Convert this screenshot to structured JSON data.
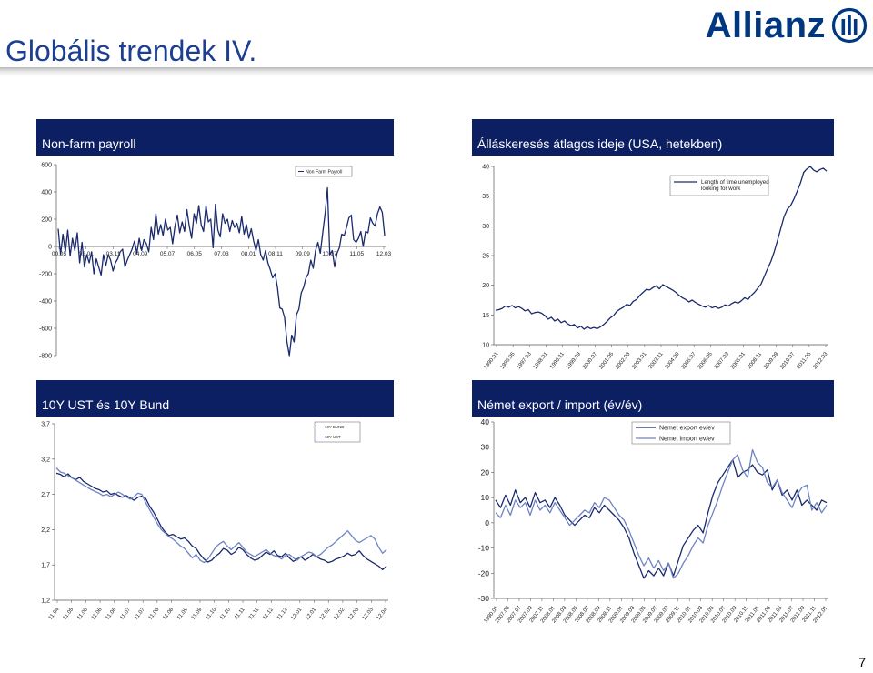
{
  "page": {
    "title": "Globális trendek IV.",
    "brand": "Allianz",
    "page_number": "7"
  },
  "colors": {
    "header_bg": "#0d1f63",
    "title": "#1b3f91",
    "brand": "#003781",
    "line_dark": "#1a2a6c",
    "line_light": "#6e83c4"
  },
  "panels": {
    "nfp": {
      "header": "Non-farm payroll"
    },
    "unemp": {
      "header": "Álláskeresés átlagos ideje (USA, hetekben)"
    },
    "bonds": {
      "header": "10Y UST és 10Y Bund"
    },
    "trade": {
      "header": "Német export / import (év/év)"
    }
  },
  "chart_data": [
    {
      "id": "nfp",
      "type": "line",
      "ylim": [
        -800,
        600
      ],
      "yticks": [
        "600",
        "400",
        "200",
        "0",
        "-200",
        "-400",
        "-600",
        "-800"
      ],
      "xticks": [
        "00.05",
        "02.01",
        "03.11",
        "04.09",
        "05.07",
        "06.05",
        "07.03",
        "08.01",
        "08.11",
        "09.09",
        "10.07",
        "11.05",
        "12.03"
      ],
      "series": [
        {
          "name": "Non Farm Payroll",
          "color": "#1a2a6c",
          "values": [
            130,
            -60,
            90,
            -40,
            120,
            -70,
            60,
            -30,
            100,
            -120,
            30,
            -150,
            -60,
            -120,
            -40,
            -200,
            -90,
            -150,
            -210,
            -60,
            -140,
            -60,
            -100,
            -180,
            -120,
            -90,
            -40,
            -20,
            -150,
            -100,
            -60,
            -20,
            40,
            -50,
            60,
            -30,
            50,
            20,
            -40,
            140,
            50,
            240,
            90,
            160,
            80,
            200,
            120,
            140,
            20,
            150,
            230,
            100,
            180,
            110,
            270,
            150,
            60,
            240,
            170,
            300,
            160,
            110,
            300,
            180,
            200,
            -10,
            310,
            120,
            70,
            240,
            170,
            200,
            110,
            190,
            140,
            170,
            100,
            220,
            90,
            160,
            60,
            130,
            40,
            -30,
            50,
            -60,
            -100,
            -30,
            -120,
            -170,
            -230,
            -200,
            -300,
            -450,
            -460,
            -520,
            -700,
            -800,
            -650,
            -700,
            -500,
            -460,
            -340,
            -300,
            -230,
            -200,
            -100,
            -160,
            -30,
            30,
            -50,
            100,
            240,
            430,
            -60,
            -30,
            -150,
            -50,
            -10,
            90,
            80,
            140,
            210,
            230,
            50,
            30,
            60,
            110,
            0,
            110,
            100,
            210,
            170,
            150,
            240,
            290,
            250,
            80
          ]
        }
      ]
    },
    {
      "id": "unemp",
      "type": "line",
      "ylim": [
        10,
        40
      ],
      "yticks": [
        "40",
        "35",
        "30",
        "25",
        "20",
        "15",
        "10"
      ],
      "xticks": [
        "1990.01",
        "1996.05",
        "1997.03",
        "1998.01",
        "1998.11",
        "1999.09",
        "2000.07",
        "2001.05",
        "2002.03",
        "2003.01",
        "2003.11",
        "2004.09",
        "2005.07",
        "2006.05",
        "2007.03",
        "2008.01",
        "2008.11",
        "2009.09",
        "2010.07",
        "2011.05",
        "2012.03"
      ],
      "series": [
        {
          "name": "Length of time unemployed looking for work",
          "color": "#1a2a6c",
          "values": [
            15.8,
            15.9,
            16.1,
            16.5,
            16.3,
            16.6,
            16.2,
            16.4,
            16.1,
            15.7,
            15.9,
            15.2,
            15.4,
            15.5,
            15.3,
            14.9,
            14.3,
            14.6,
            14.0,
            14.3,
            13.7,
            14.0,
            13.5,
            13.2,
            13.4,
            12.8,
            13.1,
            12.6,
            13.0,
            12.7,
            12.9,
            12.7,
            13.0,
            13.4,
            13.9,
            14.5,
            14.9,
            15.6,
            16.0,
            16.3,
            16.8,
            16.6,
            17.3,
            17.6,
            18.3,
            18.8,
            19.3,
            19.2,
            19.6,
            19.9,
            19.4,
            20.1,
            19.8,
            19.5,
            19.2,
            18.8,
            18.3,
            17.9,
            17.6,
            17.2,
            17.5,
            17.1,
            16.8,
            16.5,
            16.3,
            16.6,
            16.2,
            16.4,
            16.1,
            16.3,
            16.7,
            16.5,
            16.9,
            17.2,
            17.0,
            17.4,
            17.9,
            17.6,
            18.3,
            18.8,
            19.5,
            20.2,
            21.5,
            22.8,
            24.0,
            25.6,
            27.5,
            29.5,
            31.5,
            32.8,
            33.4,
            34.5,
            35.8,
            37.2,
            39.0,
            39.6,
            40.0,
            39.4,
            39.1,
            39.5,
            39.7,
            39.2
          ]
        }
      ]
    },
    {
      "id": "bonds",
      "type": "line",
      "ylim": [
        1.2,
        4.2
      ],
      "yticks": [
        "3,7",
        "3,2",
        "2,7",
        "2,2",
        "1,7",
        "1,2"
      ],
      "xticks": [
        "11.04",
        "11.05",
        "11.05",
        "11.06",
        "11.06",
        "11.07",
        "11.07",
        "11.08",
        "11.08",
        "11.09",
        "11.09",
        "11.10",
        "11.10",
        "11.11",
        "11.11",
        "11.12",
        "11.12",
        "12.01",
        "12.01",
        "12.02",
        "12.02",
        "12.03",
        "12.03",
        "12.04"
      ],
      "series": [
        {
          "name": "10Y BUND",
          "color": "#1a2a6c",
          "values": [
            3.36,
            3.34,
            3.3,
            3.35,
            3.28,
            3.25,
            3.29,
            3.22,
            3.18,
            3.14,
            3.1,
            3.08,
            3.04,
            3.06,
            3.0,
            3.02,
            2.98,
            2.95,
            2.98,
            2.94,
            2.9,
            2.95,
            2.97,
            2.93,
            2.8,
            2.7,
            2.58,
            2.45,
            2.36,
            2.3,
            2.32,
            2.28,
            2.24,
            2.26,
            2.2,
            2.12,
            2.08,
            1.98,
            1.9,
            1.85,
            1.88,
            1.95,
            2.0,
            2.08,
            2.05,
            1.98,
            2.02,
            2.1,
            2.06,
            1.98,
            1.92,
            1.88,
            1.9,
            1.96,
            2.02,
            1.98,
            2.04,
            1.96,
            1.94,
            2.0,
            1.92,
            1.86,
            1.9,
            1.94,
            1.88,
            1.92,
            1.98,
            1.94,
            1.9,
            1.88,
            1.84,
            1.86,
            1.9,
            1.92,
            1.95,
            2.0,
            1.96,
            1.98,
            2.04,
            1.96,
            1.9,
            1.86,
            1.82,
            1.78,
            1.72,
            1.78
          ]
        },
        {
          "name": "10Y UST",
          "color": "#6e83c4",
          "values": [
            3.45,
            3.38,
            3.36,
            3.32,
            3.28,
            3.24,
            3.2,
            3.16,
            3.12,
            3.08,
            3.05,
            3.02,
            2.98,
            3.0,
            2.96,
            3.0,
            3.04,
            3.0,
            2.96,
            2.92,
            2.96,
            3.02,
            3.0,
            2.86,
            2.74,
            2.62,
            2.5,
            2.4,
            2.34,
            2.28,
            2.24,
            2.18,
            2.12,
            2.08,
            2.0,
            1.92,
            1.98,
            1.88,
            1.84,
            1.9,
            2.0,
            2.1,
            2.16,
            2.2,
            2.12,
            2.06,
            2.12,
            2.18,
            2.1,
            2.02,
            1.98,
            1.94,
            1.98,
            2.02,
            2.06,
            2.0,
            1.96,
            1.94,
            1.9,
            1.96,
            1.98,
            1.92,
            1.88,
            1.94,
            1.98,
            2.02,
            2.0,
            1.94,
            1.98,
            2.04,
            2.1,
            2.14,
            2.2,
            2.26,
            2.32,
            2.38,
            2.3,
            2.22,
            2.18,
            2.22,
            2.26,
            2.3,
            2.24,
            2.1,
            2.0,
            2.06
          ]
        }
      ]
    },
    {
      "id": "trade",
      "type": "line",
      "ylim": [
        -30,
        40
      ],
      "yticks": [
        "40",
        "30",
        "20",
        "10",
        "0",
        "-10",
        "-20",
        "-30"
      ],
      "xticks": [
        "1990.01",
        "2007.05",
        "2007.07",
        "2007.09",
        "2007.11",
        "2008.01",
        "2008.03",
        "2008.05",
        "2008.07",
        "2008.09",
        "2008.11",
        "2009.01",
        "2009.03",
        "2009.05",
        "2009.07",
        "2009.09",
        "2009.11",
        "2010.01",
        "2010.03",
        "2010.05",
        "2010.07",
        "2010.09",
        "2010.11",
        "2011.01",
        "2011.03",
        "2011.05",
        "2011.07",
        "2011.09",
        "2011.11",
        "2012.01"
      ],
      "series": [
        {
          "name": "Nemet export ev/ev",
          "color": "#1a2a6c",
          "values": [
            9,
            6,
            11,
            7,
            13,
            8,
            10,
            6,
            12,
            8,
            9,
            6,
            10,
            7,
            3,
            1,
            -1,
            1,
            3,
            2,
            6,
            4,
            7,
            5,
            3,
            1,
            -2,
            -6,
            -12,
            -17,
            -22,
            -19,
            -21,
            -18,
            -21,
            -16,
            -21,
            -15,
            -9,
            -6,
            -3,
            -1,
            -4,
            4,
            11,
            16,
            19,
            22,
            25,
            18,
            20,
            21,
            23,
            20,
            19,
            21,
            13,
            17,
            11,
            13,
            9,
            13,
            7,
            9,
            7,
            5,
            9,
            8
          ]
        },
        {
          "name": "Nemet import ev/ev",
          "color": "#6e83c4",
          "values": [
            4,
            2,
            7,
            3,
            9,
            6,
            8,
            3,
            9,
            5,
            7,
            4,
            8,
            5,
            2,
            -1,
            1,
            3,
            5,
            4,
            8,
            6,
            10,
            9,
            6,
            3,
            1,
            -3,
            -8,
            -13,
            -17,
            -14,
            -18,
            -15,
            -19,
            -16,
            -22,
            -20,
            -16,
            -13,
            -9,
            -6,
            -8,
            -1,
            4,
            9,
            15,
            20,
            25,
            27,
            21,
            18,
            29,
            24,
            22,
            16,
            14,
            17,
            12,
            9,
            6,
            11,
            14,
            15,
            5,
            8,
            4,
            7
          ]
        }
      ]
    }
  ]
}
